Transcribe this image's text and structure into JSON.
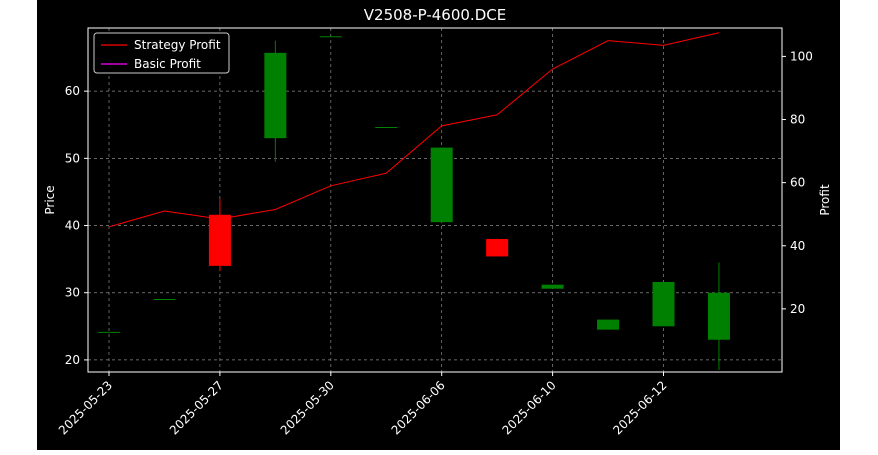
{
  "chart_data": {
    "type": "candlestick",
    "title": "V2508-P-4600.DCE",
    "xlabel": "",
    "ylabel": "Price",
    "y2label": "Profit",
    "ylim": [
      18.2,
      69.4
    ],
    "y2lim": [
      0,
      109
    ],
    "yticks": [
      20,
      30,
      40,
      50,
      60
    ],
    "y2ticks": [
      20,
      40,
      60,
      80,
      100
    ],
    "grid": true,
    "background": "#000000",
    "colors": {
      "up": "#008000",
      "down": "#ff0000",
      "strategy": "#ff0000",
      "basic": "#ff00ff"
    },
    "xticks": [
      {
        "index": 0,
        "label": "2025-05-23"
      },
      {
        "index": 2,
        "label": "2025-05-27"
      },
      {
        "index": 4,
        "label": "2025-05-30"
      },
      {
        "index": 6,
        "label": "2025-06-06"
      },
      {
        "index": 8,
        "label": "2025-06-10"
      },
      {
        "index": 10,
        "label": "2025-06-12"
      }
    ],
    "candles": [
      {
        "open": 24.1,
        "high": 24.1,
        "low": 24.1,
        "close": 24.1
      },
      {
        "open": 29.0,
        "high": 29.0,
        "low": 29.0,
        "close": 29.0
      },
      {
        "open": 41.6,
        "high": 44.0,
        "low": 33.2,
        "close": 34.0
      },
      {
        "open": 53.0,
        "high": 67.5,
        "low": 49.5,
        "close": 65.7
      },
      {
        "open": 68.1,
        "high": 68.1,
        "low": 68.1,
        "close": 68.1
      },
      {
        "open": 54.6,
        "high": 54.6,
        "low": 54.6,
        "close": 54.6
      },
      {
        "open": 40.5,
        "high": 51.6,
        "low": 40.5,
        "close": 51.6
      },
      {
        "open": 38.0,
        "high": 38.0,
        "low": 35.4,
        "close": 35.4
      },
      {
        "open": 30.6,
        "high": 31.2,
        "low": 30.6,
        "close": 31.2
      },
      {
        "open": 24.5,
        "high": 26.0,
        "low": 24.5,
        "close": 26.0
      },
      {
        "open": 25.0,
        "high": 31.6,
        "low": 25.0,
        "close": 31.6
      },
      {
        "open": 23.0,
        "high": 34.5,
        "low": 18.5,
        "close": 30.0
      }
    ],
    "series": [
      {
        "name": "Strategy Profit",
        "axis": "right",
        "color": "#ff0000",
        "values": [
          46,
          51,
          48.5,
          51.5,
          59,
          63,
          78,
          81.5,
          96,
          105,
          103.5,
          107.5
        ]
      },
      {
        "name": "Basic Profit",
        "axis": "right",
        "color": "#ff00ff",
        "values": []
      }
    ],
    "legend": {
      "position": "top-left"
    }
  }
}
